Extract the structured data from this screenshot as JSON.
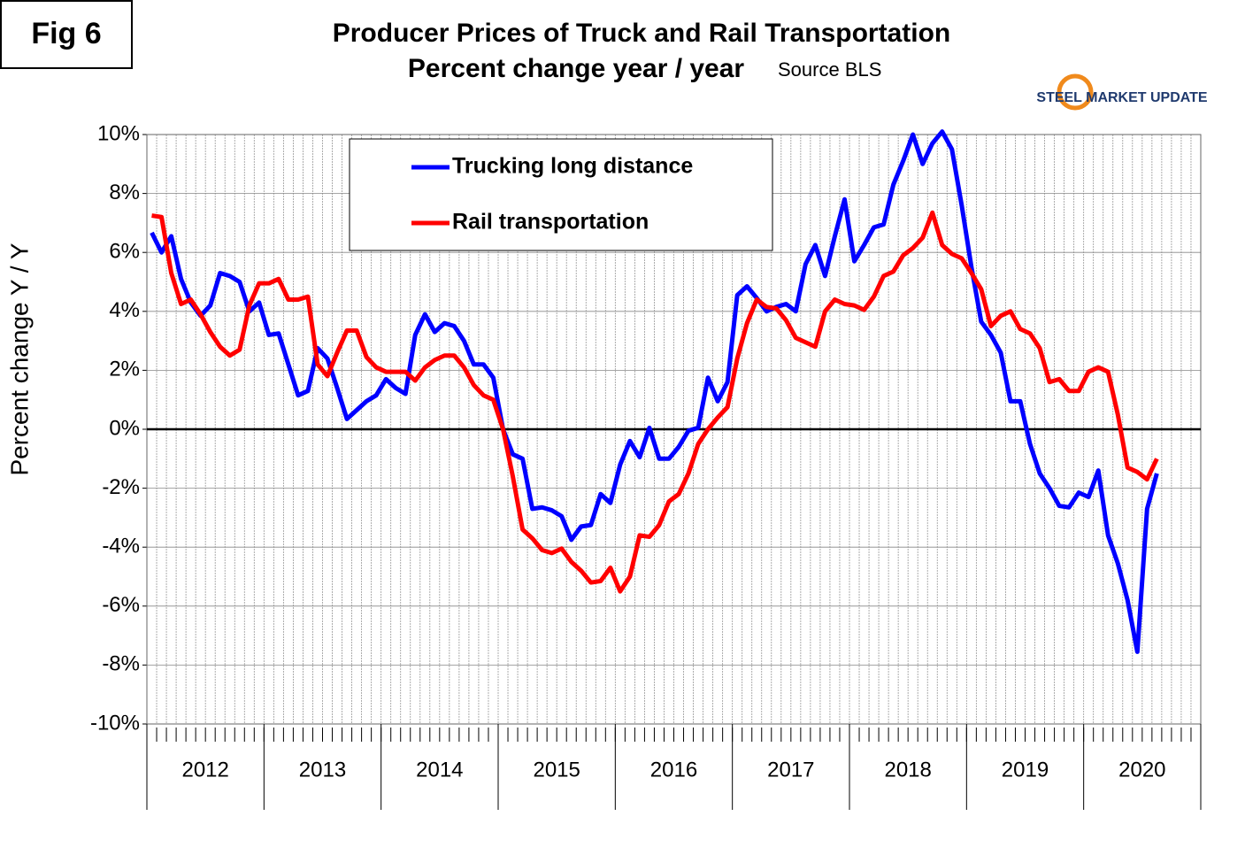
{
  "chart_data": {
    "type": "line",
    "figure_label": "Fig 6",
    "title": "Producer Prices of Truck and Rail Transportation",
    "subtitle": "Percent change year / year",
    "source": "Source BLS",
    "brand": "STEEL MARKET UPDATE",
    "y_label": "Percent change Y / Y",
    "categories": [
      "2012",
      null,
      null,
      null,
      null,
      null,
      null,
      null,
      null,
      null,
      null,
      null,
      "2013",
      null,
      null,
      null,
      null,
      null,
      null,
      null,
      null,
      null,
      null,
      null,
      "2014",
      null,
      null,
      null,
      null,
      null,
      null,
      null,
      null,
      null,
      null,
      null,
      "2015",
      null,
      null,
      null,
      null,
      null,
      null,
      null,
      null,
      null,
      null,
      null,
      "2016",
      null,
      null,
      null,
      null,
      null,
      null,
      null,
      null,
      null,
      null,
      null,
      "2017",
      null,
      null,
      null,
      null,
      null,
      null,
      null,
      null,
      null,
      null,
      null,
      "2018",
      null,
      null,
      null,
      null,
      null,
      null,
      null,
      null,
      null,
      null,
      null,
      "2019",
      null,
      null,
      null,
      null,
      null,
      null,
      null,
      null,
      null,
      null,
      null,
      "2020",
      null,
      null,
      null,
      null,
      null,
      null,
      null,
      null,
      null,
      null,
      null
    ],
    "series": [
      {
        "name": "Trucking long distance",
        "color": "#0000ff",
        "values": [
          6.67,
          6.0,
          6.55,
          5.1,
          4.3,
          3.85,
          4.2,
          5.3,
          5.2,
          5.0,
          4.0,
          4.3,
          3.2,
          3.25,
          2.2,
          1.15,
          1.3,
          2.75,
          2.4,
          1.4,
          0.35,
          0.65,
          0.95,
          1.15,
          1.7,
          1.4,
          1.2,
          3.2,
          3.9,
          3.3,
          3.6,
          3.5,
          3.0,
          2.2,
          2.2,
          1.75,
          0.0,
          -0.85,
          -1.0,
          -2.7,
          -2.65,
          -2.75,
          -2.95,
          -3.75,
          -3.3,
          -3.25,
          -2.2,
          -2.5,
          -1.2,
          -0.4,
          -0.95,
          0.05,
          -1.0,
          -1.0,
          -0.6,
          -0.05,
          0.05,
          1.75,
          0.95,
          1.6,
          4.55,
          4.85,
          4.45,
          4.0,
          4.15,
          4.25,
          4.0,
          5.6,
          6.25,
          5.2,
          6.55,
          7.8,
          5.7,
          6.25,
          6.85,
          6.95,
          8.3,
          9.1,
          10.0,
          9.0,
          9.7,
          10.1,
          9.5,
          7.6,
          5.5,
          3.65,
          3.2,
          2.6,
          0.95,
          0.95,
          -0.5,
          -1.5,
          -2.0,
          -2.6,
          -2.65,
          -2.15,
          -2.3,
          -1.4,
          -3.6,
          -4.55,
          -5.8,
          -7.55,
          -2.7,
          -1.5,
          null,
          null,
          null,
          null
        ]
      },
      {
        "name": "Rail transportation",
        "color": "#ff0000",
        "values": [
          7.25,
          7.2,
          5.3,
          4.25,
          4.4,
          3.9,
          3.3,
          2.8,
          2.5,
          2.7,
          4.2,
          4.95,
          4.95,
          5.1,
          4.4,
          4.4,
          4.5,
          2.2,
          1.8,
          2.6,
          3.35,
          3.35,
          2.45,
          2.1,
          1.95,
          1.95,
          1.95,
          1.65,
          2.1,
          2.35,
          2.5,
          2.5,
          2.1,
          1.5,
          1.15,
          1.0,
          0.0,
          -1.6,
          -3.4,
          -3.7,
          -4.1,
          -4.2,
          -4.05,
          -4.5,
          -4.8,
          -5.2,
          -5.15,
          -4.7,
          -5.5,
          -5.0,
          -3.6,
          -3.65,
          -3.25,
          -2.45,
          -2.2,
          -1.5,
          -0.5,
          0.0,
          0.4,
          0.75,
          2.4,
          3.6,
          4.4,
          4.15,
          4.1,
          3.7,
          3.1,
          2.95,
          2.8,
          4.0,
          4.4,
          4.25,
          4.2,
          4.05,
          4.5,
          5.2,
          5.35,
          5.9,
          6.15,
          6.5,
          7.35,
          6.25,
          5.95,
          5.8,
          5.3,
          4.75,
          3.5,
          3.85,
          4.0,
          3.4,
          3.25,
          2.75,
          1.6,
          1.7,
          1.3,
          1.3,
          1.95,
          2.1,
          1.95,
          0.5,
          -1.3,
          -1.45,
          -1.7,
          -1.0,
          null,
          null,
          null,
          null
        ]
      }
    ],
    "ylim": [
      -10,
      10
    ],
    "yticks": [
      {
        "value": 10,
        "label": "10%"
      },
      {
        "value": 8,
        "label": "8%"
      },
      {
        "value": 6,
        "label": "6%"
      },
      {
        "value": 4,
        "label": "4%"
      },
      {
        "value": 2,
        "label": "2%"
      },
      {
        "value": 0,
        "label": "0%"
      },
      {
        "value": -2,
        "label": "-2%"
      },
      {
        "value": -4,
        "label": "-4%"
      },
      {
        "value": -6,
        "label": "-6%"
      },
      {
        "value": -8,
        "label": "-8%"
      },
      {
        "value": -10,
        "label": "-10%"
      }
    ],
    "grid": true,
    "zero_line": true
  }
}
